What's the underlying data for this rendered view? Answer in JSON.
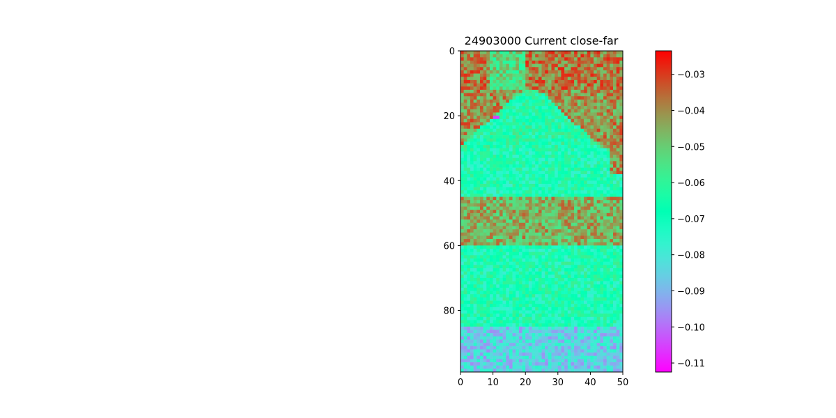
{
  "chart_data": {
    "type": "heatmap",
    "title": "24903000 Current close-far",
    "xlabel": "",
    "ylabel": "",
    "x_range": [
      0,
      50
    ],
    "y_range": [
      0,
      99
    ],
    "y_inverted": true,
    "n_cols": 50,
    "n_rows": 99,
    "x_ticks": [
      "0",
      "10",
      "20",
      "30",
      "40",
      "50"
    ],
    "y_ticks": [
      "0",
      "20",
      "40",
      "60",
      "80"
    ],
    "colormap": "rainbow",
    "colorbar": {
      "min": -0.1125,
      "max": -0.0235,
      "ticks": [
        "−0.03",
        "−0.04",
        "−0.05",
        "−0.06",
        "−0.07",
        "−0.08",
        "−0.09",
        "−0.10",
        "−0.11"
      ],
      "tick_values": [
        -0.03,
        -0.04,
        -0.05,
        -0.06,
        -0.07,
        -0.08,
        -0.09,
        -0.1,
        -0.11
      ]
    },
    "approximate_value_profile": {
      "rows_0_to_25_left_and_right_edges": -0.038,
      "rows_10_to_30_center_band": -0.065,
      "rows_30_to_45": -0.068,
      "rows_45_to_60": -0.045,
      "rows_60_to_85": -0.068,
      "rows_85_to_99": -0.085,
      "outlier_near_x11_y20": -0.105
    },
    "grid": false,
    "colorbar_placement": "right"
  }
}
